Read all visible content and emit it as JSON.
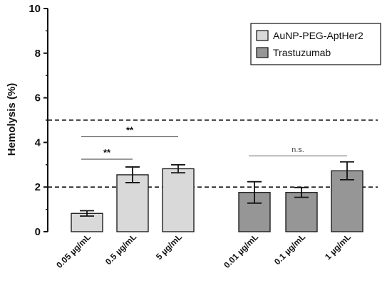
{
  "chart_data": {
    "type": "bar",
    "ylabel": "Hemolysis (%)",
    "ylim": [
      0,
      10
    ],
    "yticks": [
      "0",
      "2",
      "4",
      "6",
      "8",
      "10"
    ],
    "grid": false,
    "legend_position": "top-right",
    "reference_lines": [
      2,
      5
    ],
    "series": [
      {
        "name": "AuNP-PEG-AptHer2",
        "color": "#d9d9d9",
        "categories": [
          "0.05 µg/mL",
          "0.5 µg/mL",
          "5 µg/mL"
        ],
        "values": [
          0.82,
          2.55,
          2.82
        ],
        "errors": [
          0.12,
          0.35,
          0.18
        ]
      },
      {
        "name": "Trastuzumab",
        "color": "#969696",
        "categories": [
          "0.01 µg/mL",
          "0.1 µg/mL",
          "1 µg/mL"
        ],
        "values": [
          1.76,
          1.76,
          2.73
        ],
        "errors": [
          0.48,
          0.22,
          0.4
        ]
      }
    ],
    "annotations": [
      {
        "text": "**",
        "from": 0,
        "to": 2,
        "y": 4.25
      },
      {
        "text": "**",
        "from": 0,
        "to": 1,
        "y": 3.25
      },
      {
        "text": "n.s.",
        "from": 3,
        "to": 5,
        "y": 3.4
      }
    ]
  }
}
